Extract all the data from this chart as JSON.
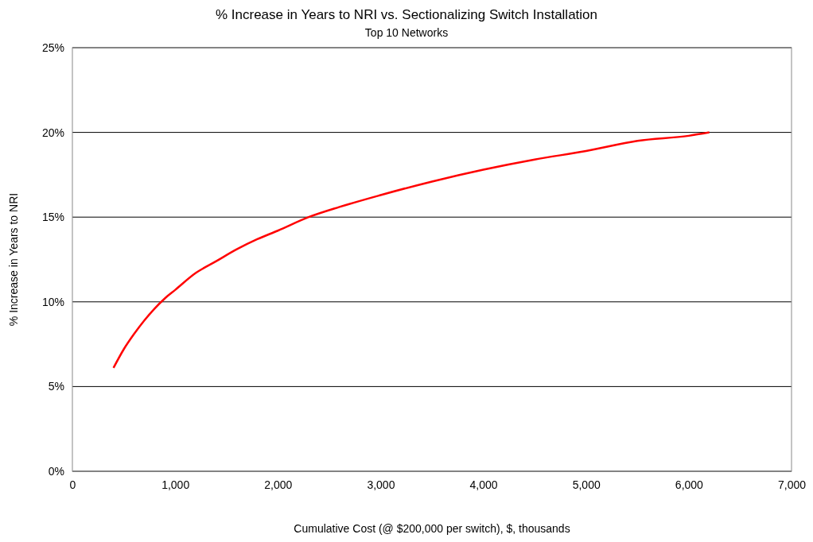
{
  "chart_data": {
    "type": "line",
    "title": "% Increase in Years to NRI vs. Sectionalizing Switch Installation",
    "subtitle": "Top 10 Networks",
    "xlabel": "Cumulative Cost (@ $200,000 per switch), $, thousands",
    "ylabel": "% Increase in Years to NRI",
    "x": [
      400,
      500,
      600,
      700,
      800,
      900,
      1000,
      1200,
      1400,
      1600,
      1800,
      2000,
      2300,
      2600,
      3000,
      3500,
      4000,
      4500,
      5000,
      5500,
      6000,
      6200
    ],
    "series": [
      {
        "color": "#ff0000",
        "values": [
          6.1,
          7.2,
          8.1,
          8.9,
          9.6,
          10.2,
          10.7,
          11.7,
          12.4,
          13.1,
          13.7,
          14.2,
          15.0,
          15.6,
          16.3,
          17.1,
          17.8,
          18.4,
          18.9,
          19.5,
          19.8,
          20.0
        ]
      }
    ],
    "xlim": [
      0,
      7000
    ],
    "xticks": [
      {
        "value": 0,
        "label": "0"
      },
      {
        "value": 1000,
        "label": "1,000"
      },
      {
        "value": 2000,
        "label": "2,000"
      },
      {
        "value": 3000,
        "label": "3,000"
      },
      {
        "value": 4000,
        "label": "4,000"
      },
      {
        "value": 5000,
        "label": "5,000"
      },
      {
        "value": 6000,
        "label": "6,000"
      },
      {
        "value": 7000,
        "label": "7,000"
      }
    ],
    "ylim": [
      0,
      25
    ],
    "yticks": [
      {
        "value": 0,
        "label": "0%"
      },
      {
        "value": 5,
        "label": "5%"
      },
      {
        "value": 10,
        "label": "10%"
      },
      {
        "value": 15,
        "label": "15%"
      },
      {
        "value": 20,
        "label": "20%"
      },
      {
        "value": 25,
        "label": "25%"
      }
    ],
    "grid": "y",
    "marker": "none",
    "line_style": "solid"
  }
}
